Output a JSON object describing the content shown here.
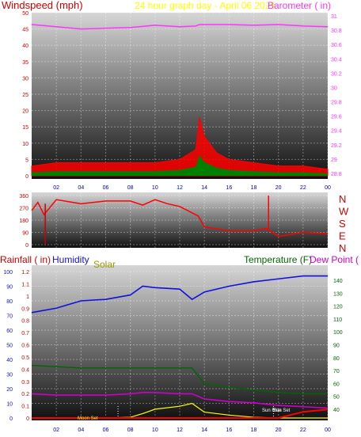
{
  "colors": {
    "wind": "#ff0000",
    "baro": "#ff33ff",
    "gust_fill": "#008000",
    "rain": "#cc0000",
    "humidity": "#1111dd",
    "solar": "#999900",
    "temperature": "#006600",
    "dewpoint": "#cc00cc",
    "title": "#ffff00"
  },
  "panel1": {
    "title": "24 hour graph day - April 06 2025",
    "left_label": "Windspeed (mph)",
    "right_label": "Barometer ( in)",
    "left_ticks": [
      "50",
      "45",
      "40",
      "35",
      "30",
      "25",
      "20",
      "15",
      "10",
      "5",
      "0"
    ],
    "right_ticks": [
      "31",
      "30.8",
      "30.6",
      "30.4",
      "30.2",
      "30",
      "29.8",
      "29.6",
      "29.4",
      "29.2",
      "29",
      "28.8"
    ],
    "x_ticks": [
      "02",
      "04",
      "06",
      "08",
      "10",
      "12",
      "14",
      "16",
      "18",
      "20",
      "22",
      "00"
    ]
  },
  "panel2": {
    "left_ticks": [
      "360",
      "270",
      "180",
      "90",
      "0"
    ],
    "compass": [
      "N",
      "W",
      "S",
      "E",
      "N"
    ]
  },
  "panel3": {
    "label_rain": "Rainfall ( in)",
    "label_humidity": "Humidity",
    "label_solar": "Solar",
    "label_temp": "Temperature (F)",
    "label_dew": "Dew Point (",
    "hum_ticks": [
      "100",
      "90",
      "80",
      "70",
      "60",
      "50",
      "40",
      "30",
      "20",
      "10",
      "0"
    ],
    "rain_ticks": [
      "1.2",
      "1.1",
      "1",
      "0.9",
      "0.8",
      "0.7",
      "0.6",
      "0.5",
      "0.4",
      "0.3",
      "0.2",
      "0.1",
      "0"
    ],
    "temp_ticks": [
      "140",
      "130",
      "120",
      "110",
      "100",
      "90",
      "80",
      "70",
      "60",
      "50",
      "40"
    ],
    "x_ticks": [
      "02",
      "04",
      "06",
      "08",
      "10",
      "12",
      "14",
      "16",
      "18",
      "20",
      "22",
      "00"
    ],
    "moon_set": "Moon Set",
    "sun_rise": "Sun Rise",
    "sun_set": "Sun Set"
  },
  "chart_data": [
    {
      "type": "area",
      "title": "24 hour graph day - April 06 2025",
      "ylabel": "Windspeed (mph)",
      "y2label": "Barometer ( in)",
      "ylim": [
        0,
        50
      ],
      "y2lim": [
        28.8,
        31
      ],
      "x_hours": [
        0,
        2,
        4,
        6,
        8,
        10,
        12,
        13.3,
        13.6,
        14,
        15,
        16,
        18,
        20,
        22,
        24
      ],
      "series": [
        {
          "name": "Windspeed (mph)",
          "values": [
            3,
            4,
            4,
            4,
            4,
            4,
            5,
            8,
            18,
            12,
            7,
            5,
            4,
            3,
            3,
            2
          ]
        },
        {
          "name": "Barometer ( in)",
          "values": [
            30.84,
            30.81,
            30.78,
            30.79,
            30.8,
            30.83,
            30.81,
            30.82,
            30.84,
            30.84,
            30.84,
            30.84,
            30.83,
            30.84,
            30.82,
            30.81
          ]
        }
      ]
    },
    {
      "type": "line",
      "ylabel": "Wind direction (deg)",
      "ylim": [
        0,
        360
      ],
      "x_hours": [
        0,
        0.5,
        1,
        2,
        4,
        6,
        8,
        9,
        10,
        11,
        12,
        13.5,
        14,
        16,
        18,
        19,
        20,
        22,
        24
      ],
      "series": [
        {
          "name": "Direction",
          "values": [
            250,
            310,
            220,
            330,
            300,
            320,
            320,
            290,
            330,
            300,
            280,
            210,
            130,
            100,
            100,
            120,
            60,
            90,
            80
          ]
        }
      ]
    },
    {
      "type": "line",
      "ylabel": "Humidity",
      "ylim": [
        0,
        100
      ],
      "x_hours": [
        0,
        2,
        4,
        6,
        8,
        9,
        10,
        12,
        13,
        14,
        16,
        18,
        20,
        22,
        24
      ],
      "series": [
        {
          "name": "Humidity",
          "values": [
            72,
            75,
            80,
            81,
            84,
            90,
            89,
            88,
            81,
            86,
            90,
            93,
            95,
            97,
            97
          ]
        },
        {
          "name": "Temperature (F)",
          "values": [
            74,
            73,
            72,
            72,
            72,
            72,
            72,
            72,
            72,
            60,
            57,
            55,
            53,
            52,
            52
          ]
        },
        {
          "name": "Dew Point",
          "values": [
            52,
            51,
            51,
            51,
            52,
            53,
            53,
            52,
            52,
            48,
            46,
            45,
            43,
            42,
            41
          ]
        },
        {
          "name": "Solar",
          "values": [
            0,
            0,
            0,
            0,
            0.5,
            3,
            6,
            8,
            10,
            4,
            2,
            0.5,
            0,
            0,
            0
          ]
        },
        {
          "name": "Rainfall ( in)",
          "values": [
            0,
            0,
            0,
            0,
            0,
            0,
            0,
            0,
            0,
            0,
            0,
            0,
            0,
            0.05,
            0.07
          ]
        }
      ]
    }
  ]
}
